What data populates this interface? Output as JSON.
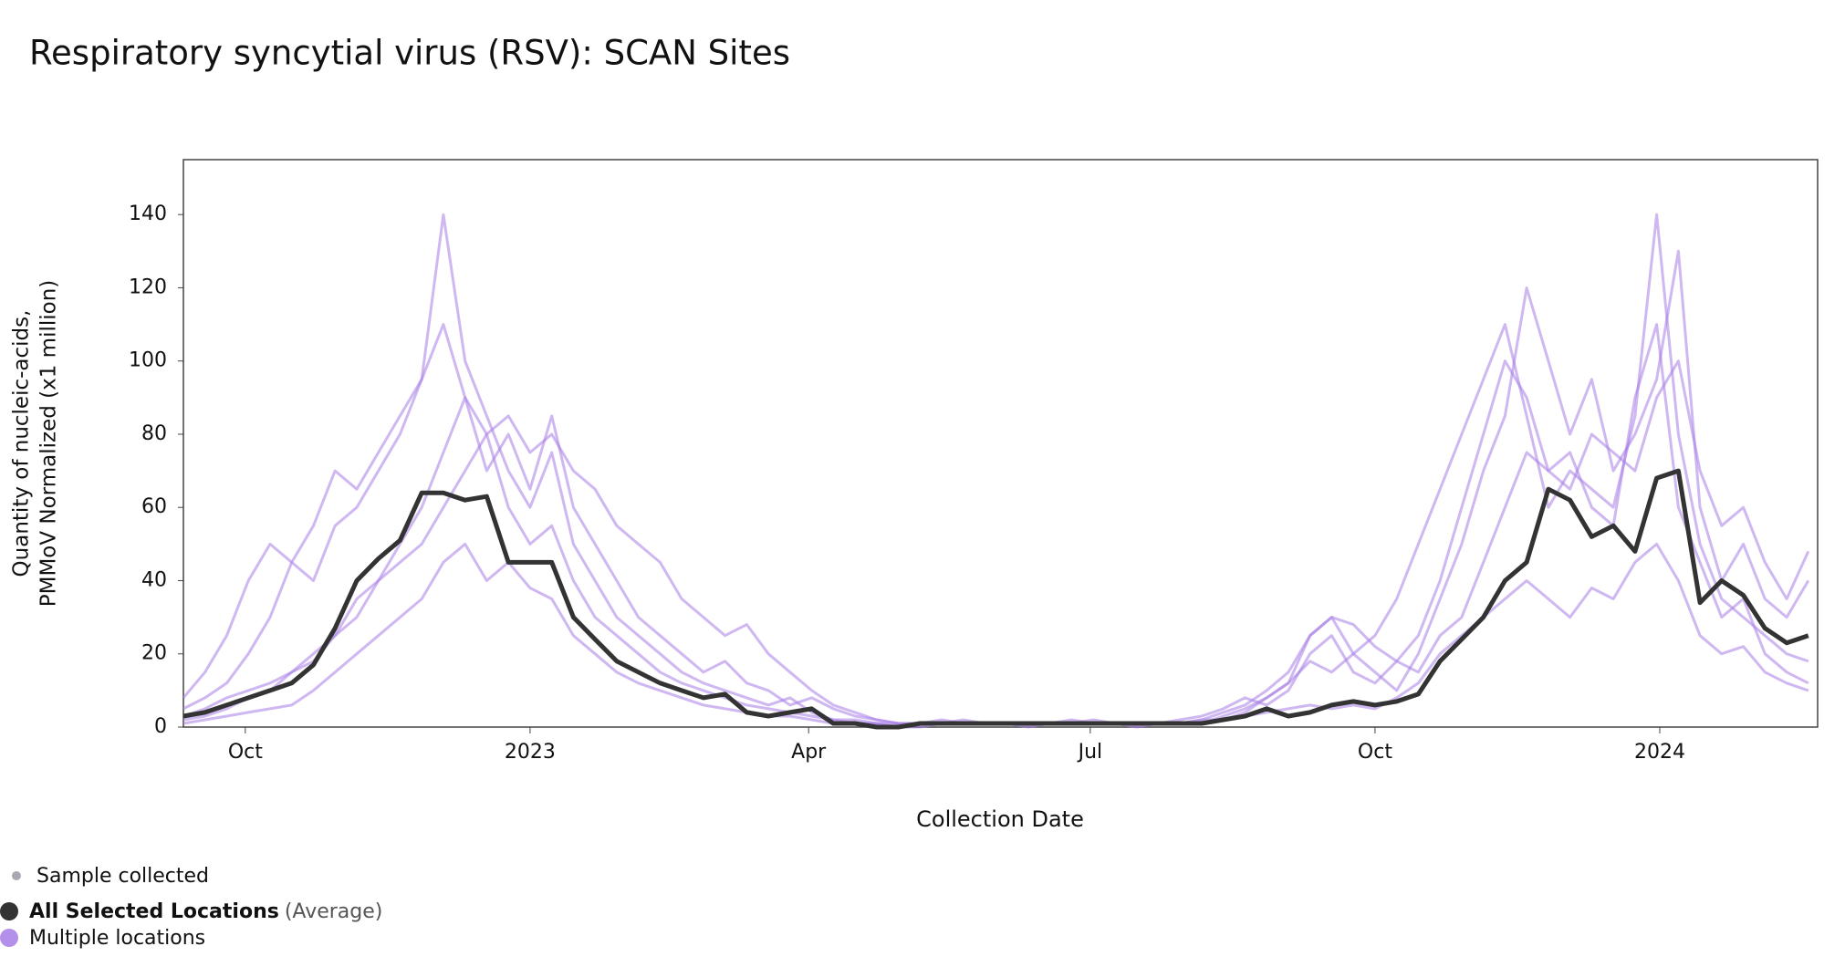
{
  "chart_data": {
    "type": "line",
    "title": "Respiratory syncytial virus (RSV): SCAN Sites",
    "xlabel": "Collection Date",
    "ylabel": [
      "Quantity of nucleic-acids,",
      "PMMoV Normalized (x1 million)"
    ],
    "sample_legend": {
      "name": "Sample collected",
      "color": "#a8a8b0"
    },
    "x": [
      "2022-09-11",
      "2022-09-18",
      "2022-09-25",
      "2022-10-02",
      "2022-10-09",
      "2022-10-16",
      "2022-10-23",
      "2022-10-30",
      "2022-11-06",
      "2022-11-13",
      "2022-11-20",
      "2022-11-27",
      "2022-12-04",
      "2022-12-11",
      "2022-12-18",
      "2022-12-25",
      "2023-01-01",
      "2023-01-08",
      "2023-01-15",
      "2023-01-22",
      "2023-01-29",
      "2023-02-05",
      "2023-02-12",
      "2023-02-19",
      "2023-02-26",
      "2023-03-05",
      "2023-03-12",
      "2023-03-19",
      "2023-03-26",
      "2023-04-02",
      "2023-04-09",
      "2023-04-16",
      "2023-04-23",
      "2023-04-30",
      "2023-05-07",
      "2023-05-14",
      "2023-05-21",
      "2023-05-28",
      "2023-06-04",
      "2023-06-11",
      "2023-06-18",
      "2023-06-25",
      "2023-07-02",
      "2023-07-09",
      "2023-07-16",
      "2023-07-23",
      "2023-07-30",
      "2023-08-06",
      "2023-08-13",
      "2023-08-20",
      "2023-08-27",
      "2023-09-03",
      "2023-09-10",
      "2023-09-17",
      "2023-09-24",
      "2023-10-01",
      "2023-10-08",
      "2023-10-15",
      "2023-10-22",
      "2023-10-29",
      "2023-11-05",
      "2023-11-12",
      "2023-11-19",
      "2023-11-26",
      "2023-12-03",
      "2023-12-10",
      "2023-12-17",
      "2023-12-24",
      "2023-12-31",
      "2024-01-07",
      "2024-01-14",
      "2024-01-21",
      "2024-01-28",
      "2024-02-04",
      "2024-02-11",
      "2024-02-18"
    ],
    "xlim": [
      "2022-09-11",
      "2024-02-21"
    ],
    "xticks": [
      {
        "value": "2022-10-01",
        "label": "Oct"
      },
      {
        "value": "2023-01-01",
        "label": "2023"
      },
      {
        "value": "2023-04-01",
        "label": "Apr"
      },
      {
        "value": "2023-07-01",
        "label": "Jul"
      },
      {
        "value": "2023-10-01",
        "label": "Oct"
      },
      {
        "value": "2024-01-01",
        "label": "2024"
      }
    ],
    "ylim": [
      0,
      155
    ],
    "yticks": [
      0,
      20,
      40,
      60,
      80,
      100,
      120,
      140
    ],
    "grid": false,
    "series": [
      {
        "name": "Multiple locations",
        "color": "#a77de6",
        "lines": [
          [
            5,
            8,
            12,
            20,
            30,
            45,
            40,
            55,
            60,
            70,
            80,
            95,
            140,
            100,
            85,
            70,
            60,
            75,
            50,
            40,
            30,
            25,
            20,
            15,
            12,
            10,
            8,
            6,
            8,
            4,
            2,
            1,
            1,
            0,
            1,
            2,
            1,
            1,
            1,
            0,
            1,
            1,
            2,
            1,
            1,
            1,
            2,
            3,
            5,
            8,
            6,
            10,
            20,
            25,
            15,
            12,
            18,
            25,
            40,
            60,
            80,
            100,
            90,
            70,
            75,
            60,
            55,
            90,
            110,
            60,
            45,
            30,
            35,
            20,
            15,
            12
          ],
          [
            2,
            3,
            5,
            8,
            10,
            15,
            20,
            25,
            35,
            40,
            50,
            60,
            75,
            90,
            70,
            80,
            65,
            85,
            60,
            50,
            40,
            30,
            25,
            20,
            15,
            18,
            12,
            10,
            6,
            8,
            5,
            3,
            2,
            1,
            1,
            1,
            2,
            1,
            1,
            1,
            1,
            2,
            1,
            1,
            0,
            1,
            1,
            2,
            4,
            6,
            10,
            15,
            25,
            30,
            20,
            15,
            10,
            20,
            35,
            50,
            70,
            85,
            120,
            100,
            80,
            95,
            70,
            80,
            95,
            130,
            60,
            40,
            50,
            35,
            30,
            40
          ],
          [
            1,
            2,
            3,
            4,
            5,
            6,
            10,
            15,
            20,
            25,
            30,
            35,
            45,
            50,
            40,
            45,
            38,
            35,
            25,
            20,
            15,
            12,
            10,
            8,
            6,
            5,
            4,
            3,
            3,
            2,
            1,
            1,
            1,
            0,
            0,
            1,
            1,
            1,
            1,
            1,
            1,
            1,
            1,
            1,
            1,
            1,
            1,
            2,
            2,
            3,
            4,
            5,
            6,
            5,
            6,
            5,
            8,
            12,
            20,
            25,
            30,
            35,
            40,
            35,
            30,
            38,
            35,
            45,
            50,
            40,
            25,
            20,
            22,
            15,
            12,
            10
          ],
          [
            3,
            5,
            8,
            10,
            12,
            15,
            18,
            25,
            30,
            40,
            45,
            50,
            60,
            70,
            80,
            85,
            75,
            80,
            70,
            65,
            55,
            50,
            45,
            35,
            30,
            25,
            28,
            20,
            15,
            10,
            6,
            4,
            2,
            1,
            1,
            1,
            1,
            1,
            1,
            1,
            1,
            1,
            1,
            1,
            1,
            1,
            1,
            1,
            2,
            4,
            8,
            12,
            25,
            30,
            28,
            22,
            18,
            15,
            25,
            30,
            45,
            60,
            75,
            70,
            65,
            80,
            75,
            70,
            90,
            100,
            70,
            55,
            60,
            45,
            35,
            48
          ],
          [
            8,
            15,
            25,
            40,
            50,
            45,
            55,
            70,
            65,
            75,
            85,
            95,
            110,
            90,
            80,
            60,
            50,
            55,
            40,
            30,
            25,
            20,
            15,
            12,
            10,
            8,
            6,
            5,
            4,
            3,
            2,
            2,
            1,
            1,
            1,
            1,
            1,
            1,
            1,
            1,
            1,
            1,
            1,
            1,
            1,
            1,
            1,
            1,
            3,
            5,
            8,
            12,
            18,
            15,
            20,
            25,
            35,
            50,
            65,
            80,
            95,
            110,
            85,
            60,
            70,
            65,
            60,
            85,
            140,
            80,
            50,
            35,
            30,
            25,
            20,
            18
          ]
        ]
      },
      {
        "name": "All Selected Locations",
        "note": "(Average)",
        "color": "#333333",
        "values": [
          3,
          4,
          6,
          8,
          10,
          12,
          17,
          27,
          40,
          46,
          51,
          64,
          64,
          62,
          63,
          45,
          45,
          45,
          30,
          24,
          18,
          15,
          12,
          10,
          8,
          9,
          4,
          3,
          4,
          5,
          1,
          1,
          0,
          0,
          1,
          1,
          1,
          1,
          1,
          1,
          1,
          1,
          1,
          1,
          1,
          1,
          1,
          1,
          2,
          3,
          5,
          3,
          4,
          6,
          7,
          6,
          7,
          9,
          18,
          24,
          30,
          40,
          45,
          65,
          62,
          52,
          55,
          48,
          68,
          70,
          34,
          40,
          36,
          27,
          23,
          25
        ]
      }
    ]
  }
}
